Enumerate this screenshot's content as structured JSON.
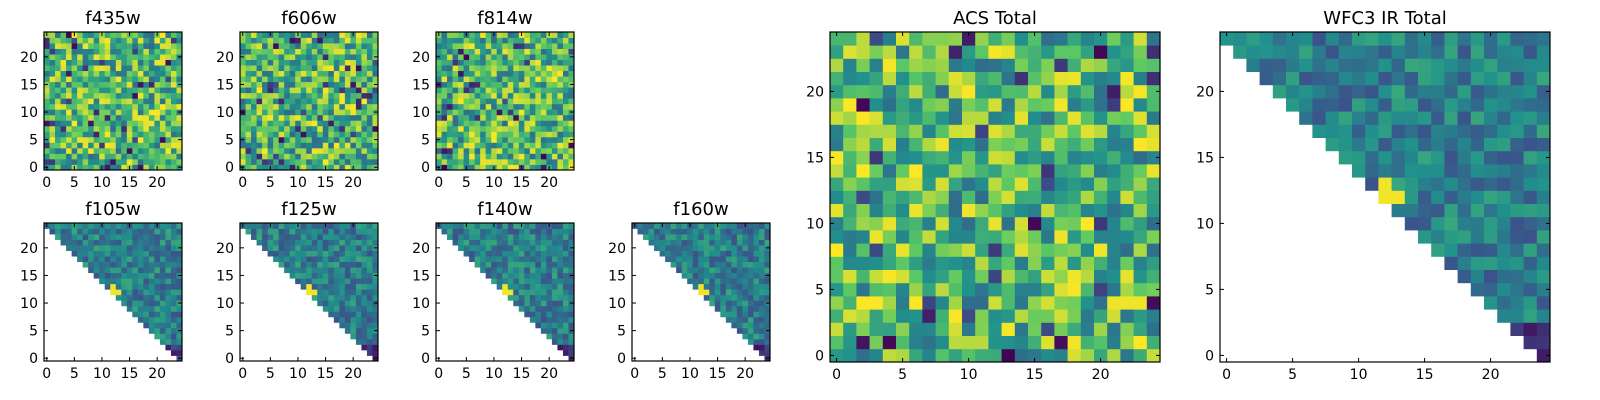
{
  "chart_data": [
    {
      "type": "heatmap",
      "title": "f435w",
      "pattern": "full",
      "seed": 11,
      "xticks": [
        "0",
        "5",
        "10",
        "15",
        "20"
      ],
      "yticks": [
        "0",
        "5",
        "10",
        "15",
        "20"
      ],
      "xlim": [
        -0.5,
        24.5
      ],
      "ylim": [
        -0.5,
        24.5
      ]
    },
    {
      "type": "heatmap",
      "title": "f606w",
      "pattern": "full",
      "seed": 23,
      "xticks": [
        "0",
        "5",
        "10",
        "15",
        "20"
      ],
      "yticks": [
        "0",
        "5",
        "10",
        "15",
        "20"
      ],
      "xlim": [
        -0.5,
        24.5
      ],
      "ylim": [
        -0.5,
        24.5
      ]
    },
    {
      "type": "heatmap",
      "title": "f814w",
      "pattern": "full",
      "seed": 37,
      "xticks": [
        "0",
        "5",
        "10",
        "15",
        "20"
      ],
      "yticks": [
        "0",
        "5",
        "10",
        "15",
        "20"
      ],
      "xlim": [
        -0.5,
        24.5
      ],
      "ylim": [
        -0.5,
        24.5
      ]
    },
    {
      "type": "heatmap",
      "title": "f105w",
      "pattern": "triangle",
      "seed": 41,
      "xticks": [
        "0",
        "5",
        "10",
        "15",
        "20"
      ],
      "yticks": [
        "0",
        "5",
        "10",
        "15",
        "20"
      ],
      "xlim": [
        -0.5,
        24.5
      ],
      "ylim": [
        -0.5,
        24.5
      ]
    },
    {
      "type": "heatmap",
      "title": "f125w",
      "pattern": "triangle",
      "seed": 53,
      "xticks": [
        "0",
        "5",
        "10",
        "15",
        "20"
      ],
      "yticks": [
        "0",
        "5",
        "10",
        "15",
        "20"
      ],
      "xlim": [
        -0.5,
        24.5
      ],
      "ylim": [
        -0.5,
        24.5
      ]
    },
    {
      "type": "heatmap",
      "title": "f140w",
      "pattern": "triangle",
      "seed": 67,
      "xticks": [
        "0",
        "5",
        "10",
        "15",
        "20"
      ],
      "yticks": [
        "0",
        "5",
        "10",
        "15",
        "20"
      ],
      "xlim": [
        -0.5,
        24.5
      ],
      "ylim": [
        -0.5,
        24.5
      ]
    },
    {
      "type": "heatmap",
      "title": "f160w",
      "pattern": "triangle",
      "seed": 79,
      "xticks": [
        "0",
        "5",
        "10",
        "15",
        "20"
      ],
      "yticks": [
        "0",
        "5",
        "10",
        "15",
        "20"
      ],
      "xlim": [
        -0.5,
        24.5
      ],
      "ylim": [
        -0.5,
        24.5
      ]
    },
    {
      "type": "heatmap",
      "title": "ACS Total",
      "pattern": "full",
      "seed": 97,
      "xticks": [
        "0",
        "5",
        "10",
        "15",
        "20"
      ],
      "yticks": [
        "0",
        "5",
        "10",
        "15",
        "20"
      ],
      "xlim": [
        -0.5,
        24.5
      ],
      "ylim": [
        -0.5,
        24.5
      ]
    },
    {
      "type": "heatmap",
      "title": "WFC3 IR Total",
      "pattern": "triangle",
      "seed": 131,
      "xticks": [
        "0",
        "5",
        "10",
        "15",
        "20"
      ],
      "yticks": [
        "0",
        "5",
        "10",
        "15",
        "20"
      ],
      "xlim": [
        -0.5,
        24.5
      ],
      "ylim": [
        -0.5,
        24.5
      ]
    }
  ],
  "colormap": [
    "#440154",
    "#3b528b",
    "#21918c",
    "#5ec962",
    "#fde725"
  ]
}
